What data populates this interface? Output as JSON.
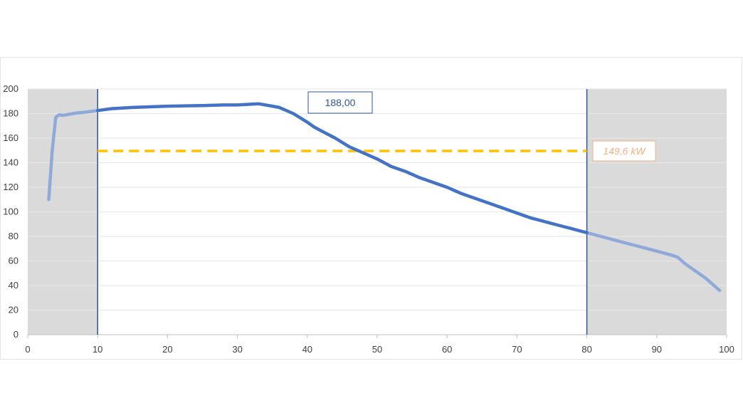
{
  "chart_data": {
    "type": "line",
    "xlim": [
      0,
      100
    ],
    "ylim": [
      0,
      200
    ],
    "x_ticks": [
      0,
      10,
      20,
      30,
      40,
      50,
      60,
      70,
      80,
      90,
      100
    ],
    "y_ticks": [
      0,
      20,
      40,
      60,
      80,
      100,
      120,
      140,
      160,
      180,
      200
    ],
    "grid": "horizontal",
    "shaded_ranges": [
      [
        0,
        10
      ],
      [
        80,
        100
      ]
    ],
    "vertical_markers": [
      10,
      80
    ],
    "series": [
      {
        "color": "#4472c4",
        "x": [
          3,
          3.5,
          4,
          4.5,
          5,
          6,
          7,
          8,
          10,
          12,
          15,
          20,
          25,
          28,
          30,
          33,
          34,
          36,
          38,
          40,
          41,
          42,
          44,
          46,
          48,
          50,
          52,
          54,
          56,
          58,
          60,
          62,
          64,
          66,
          68,
          70,
          72,
          74,
          76,
          78,
          80,
          82,
          84,
          86,
          88,
          90,
          92,
          93,
          94,
          95,
          97,
          99
        ],
        "y": [
          110,
          150,
          177,
          179,
          178.5,
          179.5,
          180.5,
          181,
          182.5,
          184,
          185,
          186,
          186.5,
          187,
          187,
          188,
          187,
          185,
          180,
          173,
          169,
          166,
          160,
          153,
          148,
          143,
          137,
          133,
          128,
          124,
          120,
          115,
          111,
          107,
          103,
          99,
          95,
          92,
          89,
          86,
          83,
          80,
          77,
          74,
          71,
          68,
          65,
          63,
          58,
          54,
          46,
          36
        ]
      }
    ],
    "annotations": {
      "peak_label": "188,00",
      "average_value": 149.6,
      "average_label": "149,6 kW",
      "average_color": "#ffc000"
    }
  }
}
